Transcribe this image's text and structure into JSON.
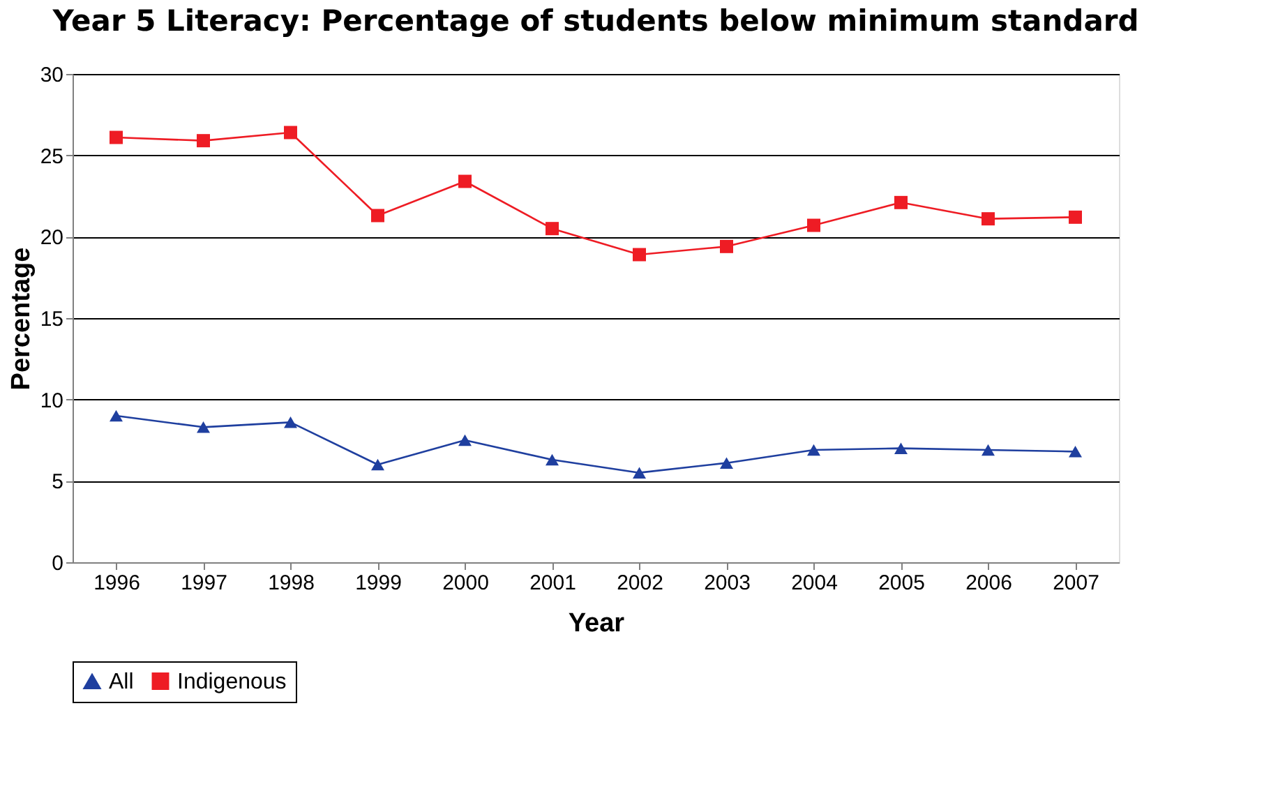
{
  "chart_data": {
    "type": "line",
    "title": "Year 5 Literacy: Percentage of students below minimum standard",
    "xlabel": "Year",
    "ylabel": "Percentage",
    "categories": [
      "1996",
      "1997",
      "1998",
      "1999",
      "2000",
      "2001",
      "2002",
      "2003",
      "2004",
      "2005",
      "2006",
      "2007"
    ],
    "series": [
      {
        "name": "All",
        "color": "#1f3f9f",
        "marker": "triangle",
        "values": [
          9.0,
          8.3,
          8.6,
          6.0,
          7.5,
          6.3,
          5.5,
          6.1,
          6.9,
          7.0,
          6.9,
          6.8
        ]
      },
      {
        "name": "Indigenous",
        "color": "#ee1c24",
        "marker": "square",
        "values": [
          26.1,
          25.9,
          26.4,
          21.3,
          23.4,
          20.5,
          18.9,
          19.4,
          20.7,
          22.1,
          21.1,
          21.2
        ]
      }
    ],
    "ylim": [
      0,
      30
    ],
    "yticks": [
      0,
      5,
      10,
      15,
      20,
      25,
      30
    ],
    "grid": "y",
    "legend": "bottom",
    "line_style": "solid"
  }
}
